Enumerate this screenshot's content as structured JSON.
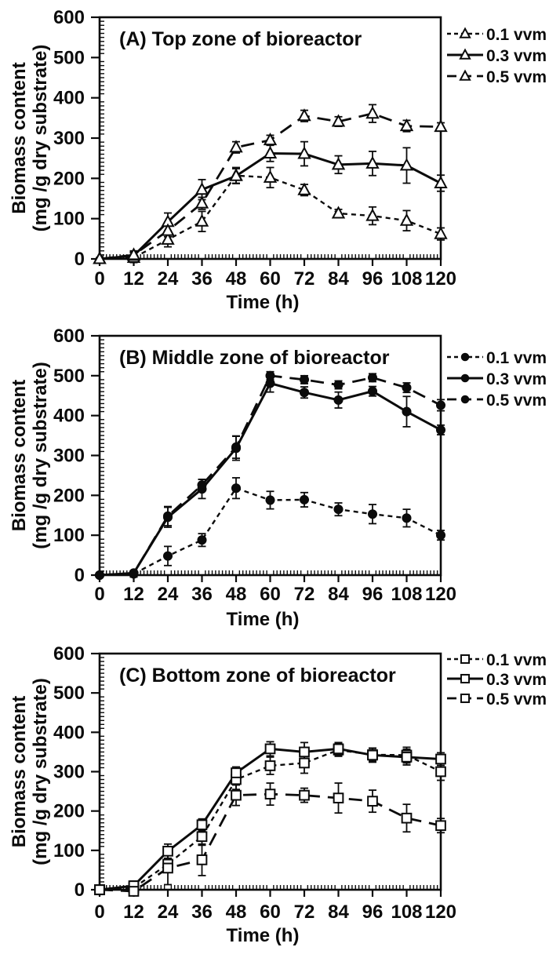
{
  "colors": {
    "ink": "#0b0b0b",
    "background": "#ffffff",
    "marker_fill_open": "#ffffff"
  },
  "axes_shared": {
    "x_title": "Time (h)",
    "y_title_line1": "Biomass content",
    "y_title_line2": "(mg /g dry substrate)",
    "x_ticks": [
      0,
      12,
      24,
      36,
      48,
      60,
      72,
      84,
      96,
      108,
      120
    ],
    "y_ticks": [
      0,
      100,
      200,
      300,
      400,
      500,
      600
    ],
    "xlim": [
      0,
      120
    ],
    "ylim": [
      0,
      600
    ],
    "grid": false,
    "legend_position": "right-top"
  },
  "chart_data": [
    {
      "type": "line",
      "panel": "A",
      "title": "(A) Top zone of bioreactor",
      "marker": "triangle-open",
      "xlabel": "Time (h)",
      "ylabel": "Biomass content (mg /g dry substrate)",
      "xlim": [
        0,
        120
      ],
      "ylim": [
        0,
        600
      ],
      "x": [
        0,
        12,
        24,
        36,
        48,
        60,
        72,
        84,
        96,
        108,
        120
      ],
      "series": [
        {
          "name": "0.1 vvm",
          "line_style": "short-dash",
          "values": [
            0,
            3,
            48,
            93,
            207,
            202,
            171,
            113,
            107,
            95,
            62
          ],
          "errors": [
            3,
            12,
            18,
            25,
            20,
            25,
            14,
            10,
            22,
            25,
            15
          ]
        },
        {
          "name": "0.3 vvm",
          "line_style": "solid",
          "values": [
            0,
            8,
            92,
            172,
            206,
            262,
            261,
            234,
            237,
            232,
            188
          ],
          "errors": [
            3,
            10,
            22,
            25,
            18,
            20,
            30,
            22,
            30,
            44,
            20
          ]
        },
        {
          "name": "0.5 vvm",
          "line_style": "long-dash",
          "values": [
            0,
            10,
            70,
            138,
            277,
            295,
            355,
            341,
            361,
            330,
            328
          ],
          "errors": [
            3,
            10,
            15,
            15,
            14,
            12,
            14,
            12,
            22,
            14,
            10
          ]
        }
      ]
    },
    {
      "type": "line",
      "panel": "B",
      "title": "(B) Middle zone of bioreactor",
      "marker": "circle-filled",
      "xlabel": "Time (h)",
      "ylabel": "Biomass content (mg /g dry substrate)",
      "xlim": [
        0,
        120
      ],
      "ylim": [
        0,
        600
      ],
      "x": [
        0,
        12,
        24,
        36,
        48,
        60,
        72,
        84,
        96,
        108,
        120
      ],
      "series": [
        {
          "name": "0.1 vvm",
          "line_style": "short-dash",
          "values": [
            0,
            3,
            48,
            88,
            218,
            188,
            189,
            165,
            153,
            143,
            100
          ],
          "errors": [
            3,
            8,
            24,
            16,
            26,
            22,
            18,
            16,
            24,
            22,
            12
          ]
        },
        {
          "name": "0.3 vvm",
          "line_style": "solid",
          "values": [
            0,
            5,
            145,
            216,
            318,
            481,
            458,
            439,
            461,
            410,
            364
          ],
          "errors": [
            3,
            6,
            25,
            24,
            30,
            22,
            14,
            20,
            12,
            38,
            12
          ]
        },
        {
          "name": "0.5 vvm",
          "line_style": "long-dash",
          "values": [
            0,
            5,
            148,
            226,
            321,
            500,
            490,
            477,
            495,
            470,
            426
          ],
          "errors": [
            3,
            6,
            24,
            14,
            28,
            10,
            10,
            10,
            10,
            12,
            14
          ]
        }
      ]
    },
    {
      "type": "line",
      "panel": "C",
      "title": "(C) Bottom zone of bioreactor",
      "marker": "square-open",
      "xlabel": "Time (h)",
      "ylabel": "Biomass content (mg /g dry substrate)",
      "xlim": [
        0,
        120
      ],
      "ylim": [
        0,
        600
      ],
      "x": [
        0,
        12,
        24,
        36,
        48,
        60,
        72,
        84,
        96,
        108,
        120
      ],
      "series": [
        {
          "name": "0.1 vvm",
          "line_style": "short-dash",
          "values": [
            0,
            5,
            65,
            135,
            280,
            315,
            322,
            355,
            343,
            342,
            300
          ],
          "errors": [
            4,
            12,
            15,
            22,
            25,
            22,
            26,
            16,
            16,
            20,
            22
          ]
        },
        {
          "name": "0.3 vvm",
          "line_style": "solid",
          "values": [
            0,
            10,
            98,
            165,
            297,
            358,
            350,
            358,
            342,
            337,
            332
          ],
          "errors": [
            4,
            12,
            18,
            15,
            15,
            18,
            24,
            16,
            18,
            20,
            16
          ]
        },
        {
          "name": "0.5 vvm",
          "line_style": "long-dash",
          "values": [
            0,
            -4,
            55,
            76,
            240,
            243,
            240,
            233,
            225,
            182,
            163
          ],
          "errors": [
            4,
            10,
            42,
            40,
            26,
            28,
            18,
            38,
            28,
            35,
            18
          ]
        }
      ]
    }
  ]
}
